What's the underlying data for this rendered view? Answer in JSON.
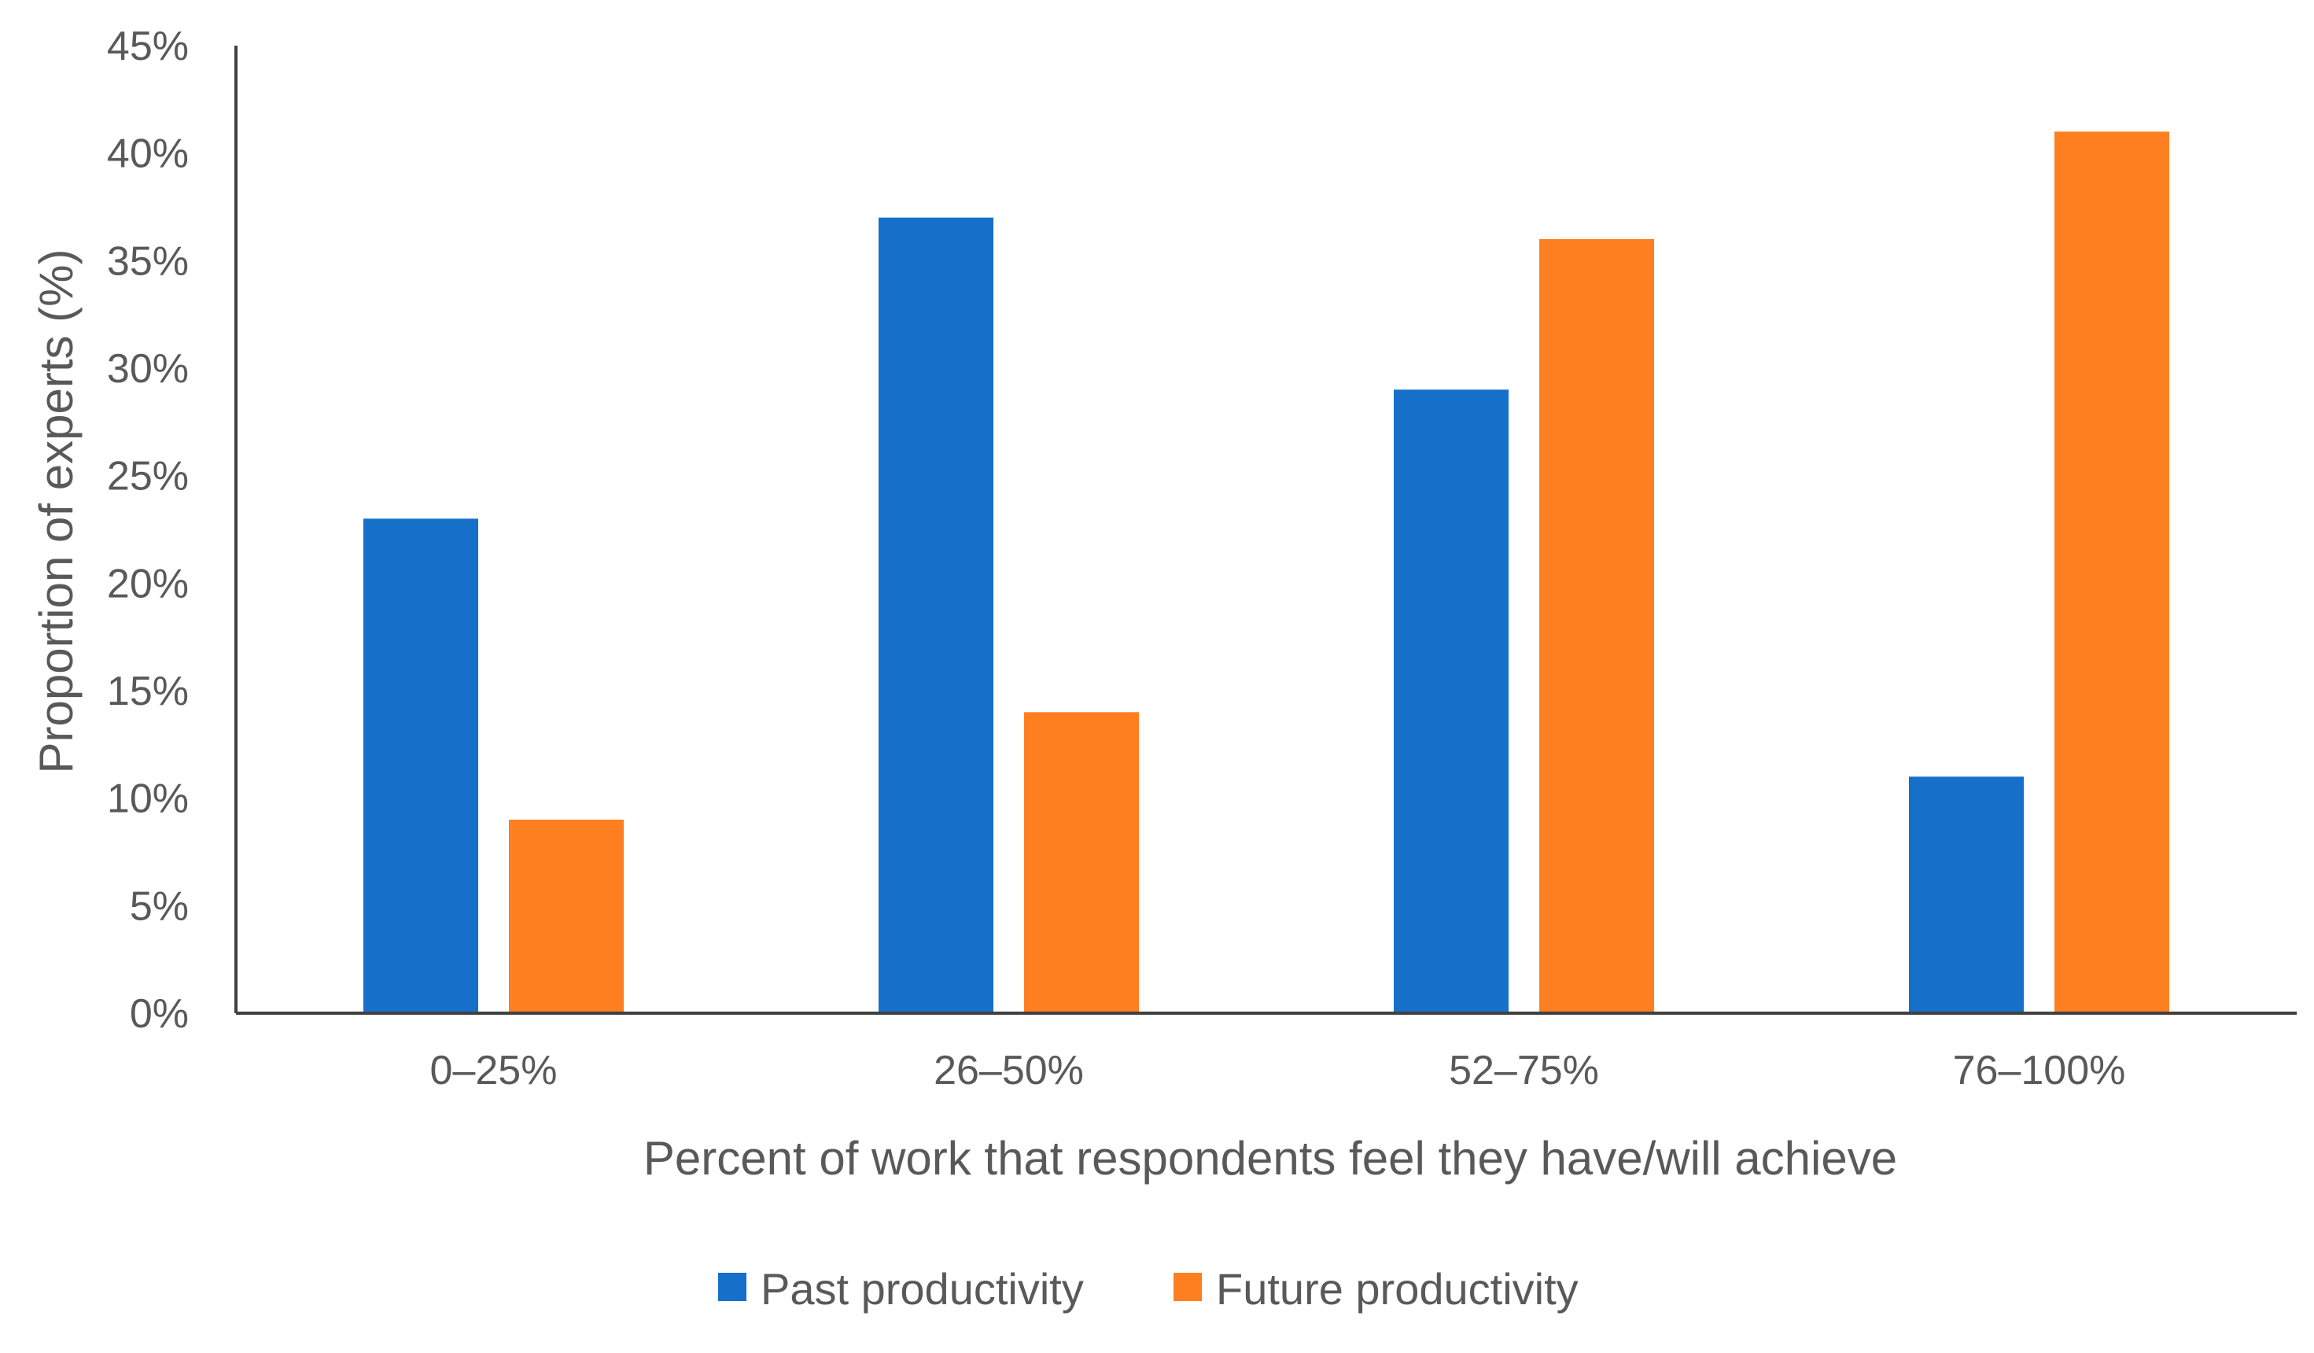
{
  "chart_data": {
    "type": "bar",
    "title": "",
    "categories": [
      "0–25%",
      "26–50%",
      "52–75%",
      "76–100%"
    ],
    "series": [
      {
        "name": "Past productivity",
        "color": "#1670C9",
        "values": [
          23,
          37,
          29,
          11
        ]
      },
      {
        "name": "Future productivity",
        "color": "#FD7F20",
        "values": [
          9,
          14,
          36,
          41
        ]
      }
    ],
    "xlabel": "Percent of work that respondents feel they have/will achieve",
    "ylabel": "Proportion of experts (%)",
    "ylim": [
      0,
      45
    ],
    "yticks": [
      0,
      5,
      10,
      15,
      20,
      25,
      30,
      35,
      40,
      45
    ],
    "ytick_labels": [
      "0%",
      "5%",
      "10%",
      "15%",
      "20%",
      "25%",
      "30%",
      "35%",
      "40%",
      "45%"
    ],
    "grid": false,
    "legend_position": "bottom-center"
  }
}
